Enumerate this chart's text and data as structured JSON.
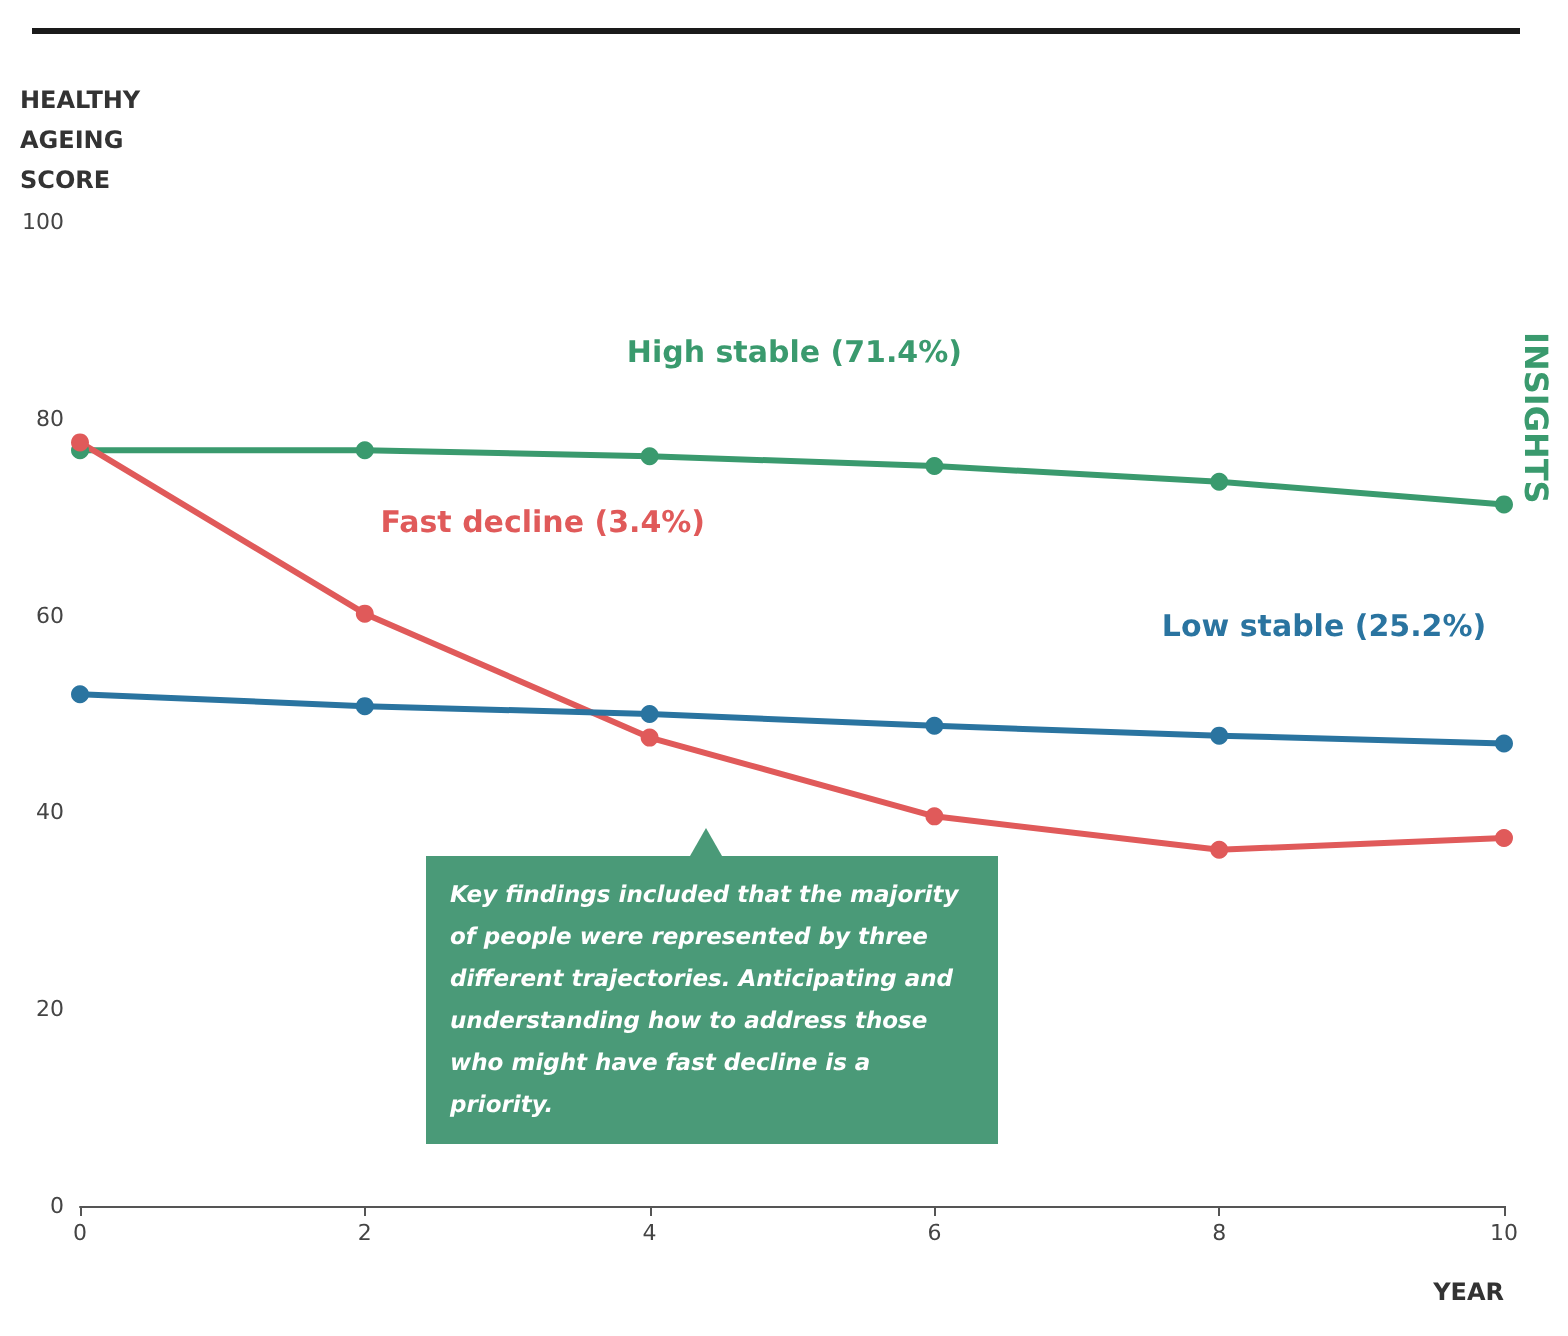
{
  "chart_data": {
    "type": "line",
    "ylabel": "HEALTHY AGEING SCORE",
    "xlabel": "YEAR",
    "x": [
      0,
      2,
      4,
      6,
      8,
      10
    ],
    "series": [
      {
        "name": "High stable (71.4%)",
        "color": "#3a9a6e",
        "values": [
          76.8,
          76.8,
          76.2,
          75.2,
          73.6,
          71.3
        ]
      },
      {
        "name": "Fast decline (3.4%)",
        "color": "#e05a5a",
        "values": [
          77.6,
          60.2,
          47.6,
          39.6,
          36.2,
          37.4
        ]
      },
      {
        "name": "Low stable (25.2%)",
        "color": "#2a74a0",
        "values": [
          52.0,
          50.8,
          50.0,
          48.8,
          47.8,
          47.0
        ]
      }
    ],
    "xlim": [
      0,
      10
    ],
    "xticks": [
      0,
      2,
      4,
      6,
      8,
      10
    ],
    "ylim": [
      0,
      100
    ],
    "yticks": [
      0,
      20,
      40,
      60,
      80,
      100
    ],
    "grid": false,
    "legend": false,
    "marker": "circle",
    "line_style": "solid",
    "annotations": [
      "Key findings included that the majority of people were represented by three different trajectories. Anticipating and understanding how to address those who might have fast decline is a priority.",
      "INSIGHTS"
    ]
  }
}
